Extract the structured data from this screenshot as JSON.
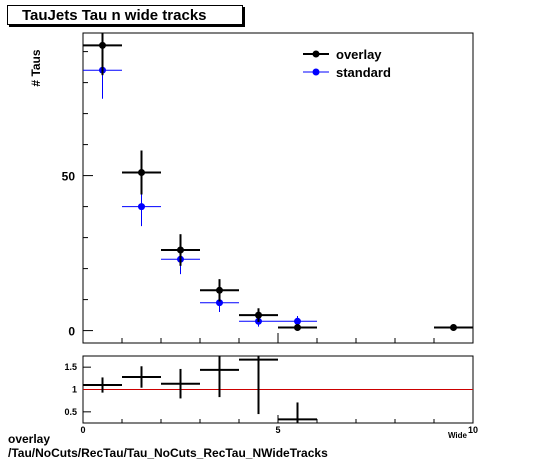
{
  "title": "TauJets Tau n wide tracks",
  "caption": {
    "line1": "overlay",
    "line2": "/Tau/NoCuts/RecTau/Tau_NoCuts_RecTau_NWideTracks"
  },
  "chart_data": [
    {
      "type": "scatter",
      "title": "TauJets Tau n wide tracks",
      "ylabel": "# Taus",
      "xlabel": "Wide",
      "xlim": [
        0,
        10
      ],
      "ylim": [
        -4,
        96
      ],
      "x_ticks": [
        0,
        5,
        10
      ],
      "y_ticks": [
        0,
        50
      ],
      "legend": "top-right",
      "grid": false,
      "series": [
        {
          "name": "overlay",
          "color": "#000000",
          "points": [
            {
              "x": 0.5,
              "y": 92,
              "yerr": 9.6
            },
            {
              "x": 1.5,
              "y": 51,
              "yerr": 7.1
            },
            {
              "x": 2.5,
              "y": 26,
              "yerr": 5.1
            },
            {
              "x": 3.5,
              "y": 13,
              "yerr": 3.6
            },
            {
              "x": 4.5,
              "y": 5,
              "yerr": 2.2
            },
            {
              "x": 5.5,
              "y": 1,
              "yerr": 1
            },
            {
              "x": 9.5,
              "y": 1,
              "yerr": 1
            }
          ]
        },
        {
          "name": "standard",
          "color": "#0000ff",
          "points": [
            {
              "x": 0.5,
              "y": 84,
              "yerr": 9.2
            },
            {
              "x": 1.5,
              "y": 40,
              "yerr": 6.3
            },
            {
              "x": 2.5,
              "y": 23,
              "yerr": 4.8
            },
            {
              "x": 3.5,
              "y": 9,
              "yerr": 3
            },
            {
              "x": 4.5,
              "y": 3,
              "yerr": 1.7
            },
            {
              "x": 5.5,
              "y": 3,
              "yerr": 1.7
            }
          ]
        }
      ]
    },
    {
      "type": "scatter",
      "xlim": [
        0,
        10
      ],
      "ylim": [
        0.25,
        1.75
      ],
      "x_ticks": [
        0,
        5,
        10
      ],
      "y_ticks": [
        0.5,
        1,
        1.5
      ],
      "reference_line": {
        "y": 1,
        "color": "#cc0000"
      },
      "series": [
        {
          "color": "#000000",
          "points": [
            {
              "x": 0.5,
              "y": 1.1,
              "yerr": 0.17
            },
            {
              "x": 1.5,
              "y": 1.28,
              "yerr": 0.24
            },
            {
              "x": 2.5,
              "y": 1.13,
              "yerr": 0.33
            },
            {
              "x": 3.5,
              "y": 1.44,
              "yerr": 0.61
            },
            {
              "x": 4.5,
              "y": 1.67,
              "yerr": 1.22
            },
            {
              "x": 5.5,
              "y": 0.33,
              "yerr": 0.38
            }
          ]
        }
      ]
    }
  ]
}
